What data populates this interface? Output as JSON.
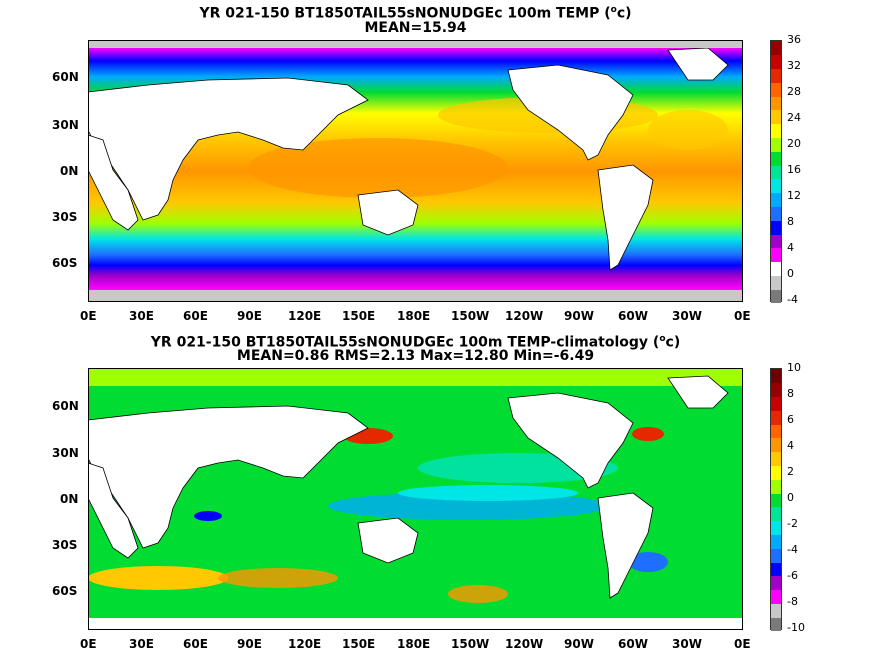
{
  "panels": [
    {
      "title": "YR 021-150 BT1850TAIL55sNONUDGEc 100m TEMP (",
      "title_sup": "o",
      "title_end": "c)",
      "subtitle": "MEAN=15.94",
      "lat_labels": [
        "60N",
        "30N",
        "0N",
        "30S",
        "60S"
      ],
      "lon_labels": [
        "0E",
        "30E",
        "60E",
        "90E",
        "120E",
        "150E",
        "180E",
        "150W",
        "120W",
        "90W",
        "60W",
        "30W",
        "0E"
      ],
      "colorbar": {
        "ticks": [
          "36",
          "32",
          "28",
          "24",
          "20",
          "16",
          "12",
          "8",
          "4",
          "0",
          "-4"
        ],
        "colors": [
          "#7a7a7a",
          "#c8c8c8",
          "#ffffff",
          "#ff00ff",
          "#a000c8",
          "#0000ff",
          "#1e6eff",
          "#00aaff",
          "#00e6e6",
          "#00e696",
          "#00dc32",
          "#a0ff00",
          "#ffff00",
          "#ffc800",
          "#ff9600",
          "#ff6400",
          "#e62800",
          "#c80000",
          "#960000"
        ]
      }
    },
    {
      "title": "YR 021-150 BT1850TAIL55sNONUDGEc 100m TEMP-climatology (",
      "title_sup": "o",
      "title_end": "c)",
      "subtitle": "MEAN=0.86   RMS=2.13   Max=12.80   Min=-6.49",
      "lat_labels": [
        "60N",
        "30N",
        "0N",
        "30S",
        "60S"
      ],
      "lon_labels": [
        "0E",
        "30E",
        "60E",
        "90E",
        "120E",
        "150E",
        "180E",
        "150W",
        "120W",
        "90W",
        "60W",
        "30W",
        "0E"
      ],
      "colorbar": {
        "ticks": [
          "10",
          "8",
          "6",
          "4",
          "2",
          "0",
          "-2",
          "-4",
          "-6",
          "-8",
          "-10"
        ],
        "colors": [
          "#7a7a7a",
          "#c8c8c8",
          "#ff00ff",
          "#a000c8",
          "#0000ff",
          "#1e6eff",
          "#00aaff",
          "#00e6e6",
          "#00e696",
          "#00dc32",
          "#a0ff00",
          "#ffff00",
          "#ffc800",
          "#ff9600",
          "#ff6400",
          "#e62800",
          "#c80000",
          "#960000",
          "#700000"
        ]
      }
    }
  ]
}
